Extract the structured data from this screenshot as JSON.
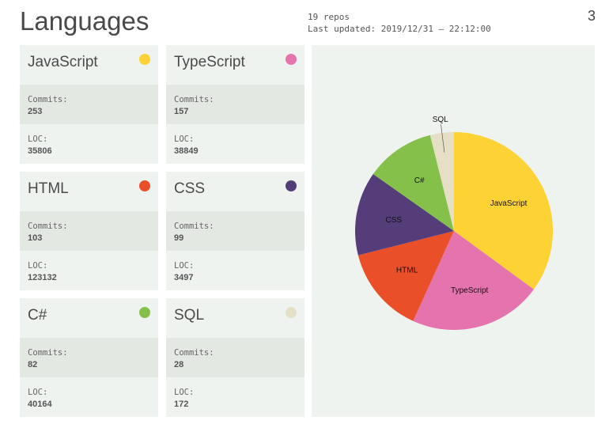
{
  "header": {
    "title": "Languages",
    "repos": "19 repos",
    "updated": "Last updated: 2019/12/31 – 22:12:00",
    "page": "3"
  },
  "labels": {
    "commits": "Commits:",
    "loc": "LOC:"
  },
  "languages": [
    {
      "name": "JavaScript",
      "commits": "253",
      "loc": "35806",
      "color": "#fdd235"
    },
    {
      "name": "TypeScript",
      "commits": "157",
      "loc": "38849",
      "color": "#e573ad"
    },
    {
      "name": "HTML",
      "commits": "103",
      "loc": "123132",
      "color": "#e9502a"
    },
    {
      "name": "CSS",
      "commits": "99",
      "loc": "3497",
      "color": "#553d7a"
    },
    {
      "name": "C#",
      "commits": "82",
      "loc": "40164",
      "color": "#85c04a"
    },
    {
      "name": "SQL",
      "commits": "28",
      "loc": "172",
      "color": "#e5dfc6"
    }
  ],
  "chart_data": {
    "type": "pie",
    "categories": [
      "JavaScript",
      "TypeScript",
      "HTML",
      "CSS",
      "C#",
      "SQL"
    ],
    "values": [
      253,
      157,
      103,
      99,
      82,
      28
    ]
  }
}
